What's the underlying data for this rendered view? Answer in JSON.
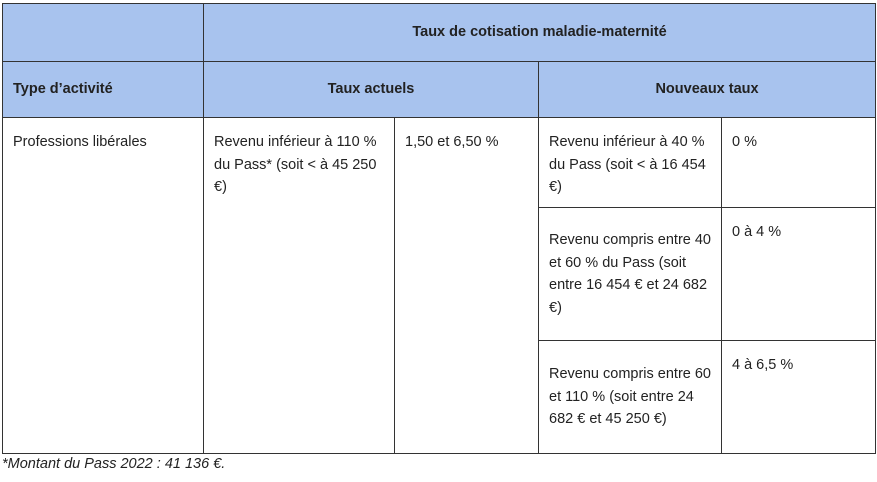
{
  "table": {
    "header": {
      "group_title": "Taux de cotisation maladie-maternité",
      "columns": [
        "Type d’activité",
        "Taux actuels",
        "Nouveaux taux"
      ]
    },
    "rows": [
      {
        "activity": "Professions libérales",
        "current": {
          "condition": "Revenu inférieur à 110 % du Pass* (soit < à 45 250 €)",
          "rate": "1,50 et 6,50 %"
        },
        "new": [
          {
            "condition": "Revenu inférieur à 40 % du Pass (soit < à 16 454 €)",
            "rate": "0 %"
          },
          {
            "condition": "Revenu compris entre 40 et 60 % du Pass (soit entre 16 454 € et 24 682 €)",
            "rate": "0 à 4 %"
          },
          {
            "condition": "Revenu compris entre 60 et 110 % (soit entre 24 682 € et 45 250 €)",
            "rate": "4 à 6,5 %"
          }
        ]
      }
    ]
  },
  "footnote": "*Montant du Pass 2022 : 41 136 €."
}
